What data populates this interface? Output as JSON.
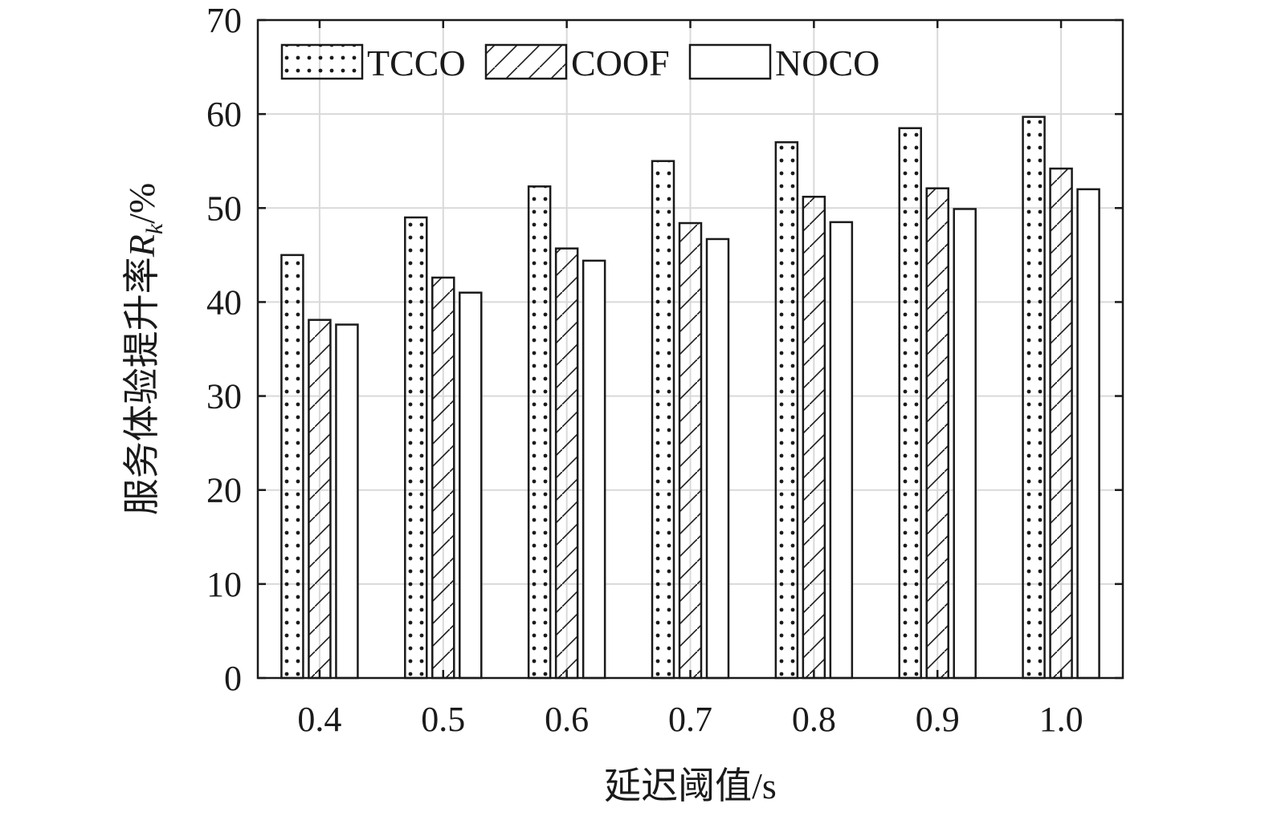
{
  "chart_data": {
    "type": "bar",
    "categories": [
      "0.4",
      "0.5",
      "0.6",
      "0.7",
      "0.8",
      "0.9",
      "1.0"
    ],
    "series": [
      {
        "name": "TCCO",
        "pattern": "dots",
        "values": [
          45.0,
          49.0,
          52.3,
          55.0,
          57.0,
          58.5,
          59.7
        ]
      },
      {
        "name": "COOF",
        "pattern": "hatch",
        "values": [
          38.1,
          42.6,
          45.7,
          48.4,
          51.2,
          52.1,
          54.2
        ]
      },
      {
        "name": "NOCO",
        "pattern": "plain",
        "values": [
          37.6,
          41.0,
          44.4,
          46.7,
          48.5,
          49.9,
          52.0
        ]
      }
    ],
    "xlabel": "延迟阈值/s",
    "ylabel": {
      "prefix": "服务体验提升率",
      "symbol": "R",
      "subscript": "k",
      "unit": "/%"
    },
    "ylim": [
      0,
      70
    ],
    "yticks": [
      0,
      10,
      20,
      30,
      40,
      50,
      60,
      70
    ],
    "grid": true,
    "legend_position": "top-left, horizontal",
    "colors": {
      "bar_fill": "#ffffff",
      "stroke": "#1a1a1a",
      "grid": "#d9d9d9"
    }
  }
}
